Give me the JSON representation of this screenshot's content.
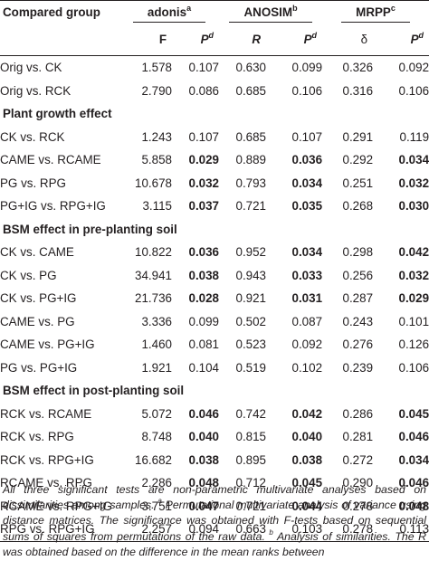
{
  "table": {
    "header": {
      "group_label": "Compared group",
      "tests": [
        {
          "name": "adonis",
          "sup": "a"
        },
        {
          "name": "ANOSIM",
          "sup": "b"
        },
        {
          "name": "MRPP",
          "sup": "c"
        }
      ],
      "sub": [
        {
          "text": "F",
          "italic": false
        },
        {
          "text": "P",
          "sup": "d",
          "italic": true
        },
        {
          "text": "R",
          "italic": true
        },
        {
          "text": "P",
          "sup": "d",
          "italic": true
        },
        {
          "text": "δ",
          "italic": false
        },
        {
          "text": "P",
          "sup": "d",
          "italic": true
        }
      ]
    },
    "rows": [
      {
        "type": "data",
        "group": "Orig vs. CK",
        "F": "1.578",
        "P1": "0.107",
        "R": "0.630",
        "P2": "0.099",
        "delta": "0.326",
        "P3": "0.092",
        "bold": [
          false,
          false,
          false
        ]
      },
      {
        "type": "data",
        "group": "Orig vs. RCK",
        "F": "2.790",
        "P1": "0.086",
        "R": "0.685",
        "P2": "0.106",
        "delta": "0.316",
        "P3": "0.106",
        "bold": [
          false,
          false,
          false
        ]
      },
      {
        "type": "section",
        "label": "Plant growth effect"
      },
      {
        "type": "data",
        "group": "CK vs. RCK",
        "F": "1.243",
        "P1": "0.107",
        "R": "0.685",
        "P2": "0.107",
        "delta": "0.291",
        "P3": "0.119",
        "bold": [
          false,
          false,
          false
        ]
      },
      {
        "type": "data",
        "group": "CAME vs. RCAME",
        "F": "5.858",
        "P1": "0.029",
        "R": "0.889",
        "P2": "0.036",
        "delta": "0.292",
        "P3": "0.034",
        "bold": [
          true,
          true,
          true
        ]
      },
      {
        "type": "data",
        "group": "PG vs. RPG",
        "F": "10.678",
        "P1": "0.032",
        "R": "0.793",
        "P2": "0.034",
        "delta": "0.251",
        "P3": "0.032",
        "bold": [
          true,
          true,
          true
        ]
      },
      {
        "type": "data",
        "group": "PG+IG vs. RPG+IG",
        "F": "3.115",
        "P1": "0.037",
        "R": "0.721",
        "P2": "0.035",
        "delta": "0.268",
        "P3": "0.030",
        "bold": [
          true,
          true,
          true
        ]
      },
      {
        "type": "section",
        "label": "BSM effect in pre-planting soil"
      },
      {
        "type": "data",
        "group": "CK vs. CAME",
        "F": "10.822",
        "P1": "0.036",
        "R": "0.952",
        "P2": "0.034",
        "delta": "0.298",
        "P3": "0.042",
        "bold": [
          true,
          true,
          true
        ]
      },
      {
        "type": "data",
        "group": "CK vs. PG",
        "F": "34.941",
        "P1": "0.038",
        "R": "0.943",
        "P2": "0.033",
        "delta": "0.256",
        "P3": "0.032",
        "bold": [
          true,
          true,
          true
        ]
      },
      {
        "type": "data",
        "group": "CK vs. PG+IG",
        "F": "21.736",
        "P1": "0.028",
        "R": "0.921",
        "P2": "0.031",
        "delta": "0.287",
        "P3": "0.029",
        "bold": [
          true,
          true,
          true
        ]
      },
      {
        "type": "data",
        "group": "CAME vs. PG",
        "F": "3.336",
        "P1": "0.099",
        "R": "0.502",
        "P2": "0.087",
        "delta": "0.243",
        "P3": "0.101",
        "bold": [
          false,
          false,
          false
        ]
      },
      {
        "type": "data",
        "group": "CAME vs. PG+IG",
        "F": "1.460",
        "P1": "0.081",
        "R": "0.523",
        "P2": "0.092",
        "delta": "0.276",
        "P3": "0.126",
        "bold": [
          false,
          false,
          false
        ]
      },
      {
        "type": "data",
        "group": "PG vs. PG+IG",
        "F": "1.921",
        "P1": "0.104",
        "R": "0.519",
        "P2": "0.102",
        "delta": "0.239",
        "P3": "0.106",
        "bold": [
          false,
          false,
          false
        ]
      },
      {
        "type": "section",
        "label": "BSM effect in post-planting soil"
      },
      {
        "type": "data",
        "group": "RCK vs. RCAME",
        "F": "5.072",
        "P1": "0.046",
        "R": "0.742",
        "P2": "0.042",
        "delta": "0.286",
        "P3": "0.045",
        "bold": [
          true,
          true,
          true
        ]
      },
      {
        "type": "data",
        "group": "RCK vs. RPG",
        "F": "8.748",
        "P1": "0.040",
        "R": "0.815",
        "P2": "0.040",
        "delta": "0.281",
        "P3": "0.046",
        "bold": [
          true,
          true,
          true
        ]
      },
      {
        "type": "data",
        "group": "RCK vs. RPG+IG",
        "F": "16.682",
        "P1": "0.038",
        "R": "0.895",
        "P2": "0.038",
        "delta": "0.272",
        "P3": "0.034",
        "bold": [
          true,
          true,
          true
        ]
      },
      {
        "type": "data",
        "group": "RCAME vs. RPG",
        "F": "2.286",
        "P1": "0.048",
        "R": "0.712",
        "P2": "0.045",
        "delta": "0.290",
        "P3": "0.046",
        "bold": [
          true,
          true,
          true
        ]
      },
      {
        "type": "data",
        "group": "RCAME vs. RPG+IG",
        "F": "3.751",
        "P1": "0.047",
        "R": "0.721",
        "P2": "0.044",
        "delta": "0.278",
        "P3": "0.048",
        "bold": [
          true,
          true,
          true
        ]
      },
      {
        "type": "data",
        "group": "RPG vs. RPG+IG",
        "F": "2.257",
        "P1": "0.094",
        "R": "0.663",
        "P2": "0.103",
        "delta": "0.278",
        "P3": "0.113",
        "bold": [
          false,
          false,
          false
        ]
      }
    ]
  },
  "footnote": {
    "part1": "All three significant tests are non-parametric multivariate analyses based on dissimilarities among samples. ",
    "sup_a": "a",
    "part2": " Permutational multivariate analysis of variance using distance matrices. The significance was obtained with F-tests based on sequential sums of squares from permutations of the raw data. ",
    "sup_b": "b",
    "part3": " Analysis of similarities. The R was obtained based on the difference in the mean ranks between"
  }
}
